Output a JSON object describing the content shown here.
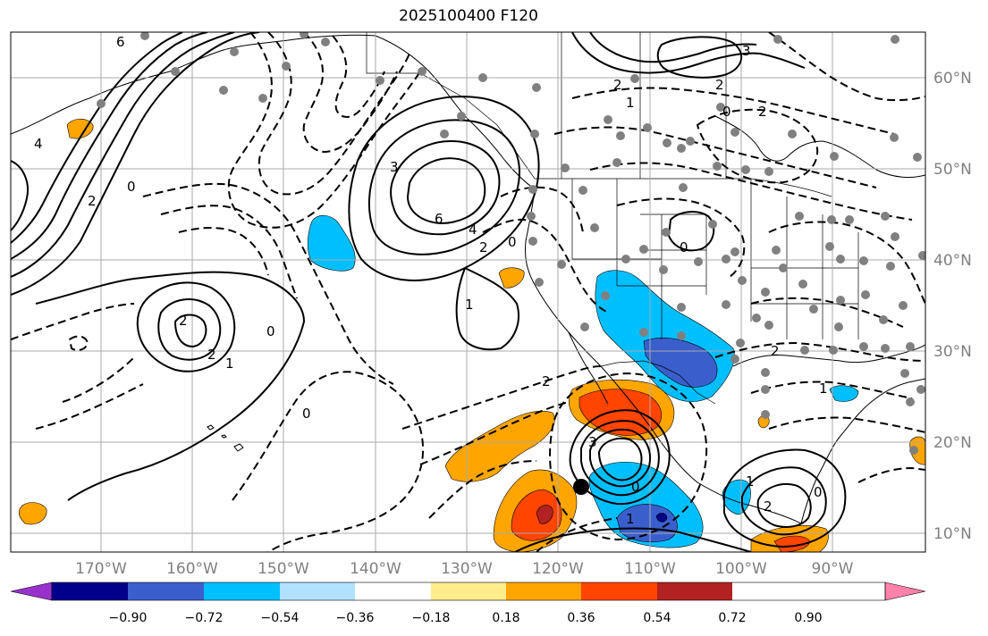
{
  "title": "2025100400 F120",
  "chart_data": {
    "type": "map",
    "title": "2025100400 F120",
    "longitude_labels": [
      "170°W",
      "160°W",
      "150°W",
      "140°W",
      "130°W",
      "120°W",
      "110°W",
      "100°W",
      "90°W"
    ],
    "latitude_labels": [
      "60°N",
      "50°N",
      "40°N",
      "30°N",
      "20°N",
      "10°N"
    ],
    "colorbar": {
      "ticks": [
        "−0.90",
        "−0.72",
        "−0.54",
        "−0.36",
        "−0.18",
        "0.18",
        "0.36",
        "0.54",
        "0.72",
        "0.90"
      ],
      "colors": [
        "#9932cc",
        "#00008b",
        "#3a5fcd",
        "#00bfff",
        "#b0e2ff",
        "#ffffff",
        "#ffec8b",
        "#ffa500",
        "#ff4500",
        "#b22222",
        "#ff82ab"
      ],
      "extend": "both"
    },
    "contour_labels": [
      "6",
      "4",
      "2",
      "0",
      "1",
      "3",
      "6",
      "4",
      "2",
      "0",
      "2",
      "2",
      "1",
      "0",
      "0",
      "2",
      "1",
      "3",
      "0",
      "2",
      "2",
      "0",
      "1",
      "2",
      "1",
      "0",
      "3",
      "0",
      "2",
      "1",
      "2"
    ],
    "grid": true,
    "marker": {
      "lon": -117.5,
      "lat": 14.5
    }
  }
}
